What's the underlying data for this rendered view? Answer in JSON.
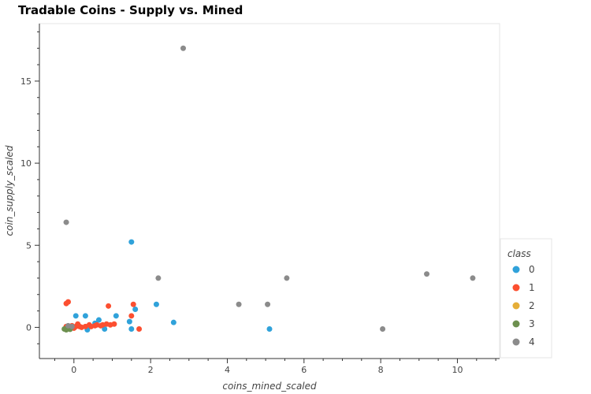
{
  "chart_data": {
    "type": "scatter",
    "title": "Tradable Coins - Supply vs. Mined",
    "xlabel": "coins_mined_scaled",
    "ylabel": "coin_supply_scaled",
    "xlim": [
      -0.9,
      11.1
    ],
    "ylim": [
      -1.9,
      18.5
    ],
    "xticks": [
      0,
      2,
      4,
      6,
      8,
      10
    ],
    "yticks": [
      0,
      5,
      10,
      15
    ],
    "grid": false,
    "legend": {
      "title": "class",
      "placement": "bottom-right"
    },
    "series": [
      {
        "name": "0",
        "color": "#30a2da",
        "points": [
          [
            0.05,
            0.7
          ],
          [
            0.3,
            0.7
          ],
          [
            0.35,
            -0.15
          ],
          [
            0.55,
            0.25
          ],
          [
            0.65,
            0.45
          ],
          [
            0.8,
            -0.1
          ],
          [
            1.1,
            0.7
          ],
          [
            1.45,
            0.35
          ],
          [
            1.5,
            5.2
          ],
          [
            1.5,
            -0.1
          ],
          [
            1.6,
            1.1
          ],
          [
            2.15,
            1.4
          ],
          [
            2.6,
            0.3
          ],
          [
            5.1,
            -0.1
          ]
        ]
      },
      {
        "name": "1",
        "color": "#fc4f30",
        "points": [
          [
            -0.2,
            1.45
          ],
          [
            -0.15,
            1.55
          ],
          [
            -0.1,
            0.0
          ],
          [
            0.0,
            -0.05
          ],
          [
            0.05,
            0.05
          ],
          [
            0.15,
            0.05
          ],
          [
            0.2,
            0.0
          ],
          [
            0.3,
            0.05
          ],
          [
            0.4,
            0.15
          ],
          [
            0.45,
            0.05
          ],
          [
            0.55,
            0.1
          ],
          [
            0.6,
            0.15
          ],
          [
            0.7,
            0.1
          ],
          [
            0.85,
            0.2
          ],
          [
            0.9,
            1.3
          ],
          [
            0.95,
            0.15
          ],
          [
            1.05,
            0.2
          ],
          [
            1.5,
            0.7
          ],
          [
            1.55,
            1.4
          ],
          [
            1.7,
            -0.1
          ],
          [
            -0.2,
            0.05
          ],
          [
            -0.05,
            0.1
          ],
          [
            0.1,
            0.2
          ],
          [
            0.75,
            0.15
          ]
        ]
      },
      {
        "name": "2",
        "color": "#e5ae38",
        "points": [
          [
            -0.2,
            -0.1
          ]
        ]
      },
      {
        "name": "3",
        "color": "#6d904f",
        "points": [
          [
            -0.25,
            -0.1
          ],
          [
            -0.2,
            -0.15
          ],
          [
            -0.15,
            -0.05
          ],
          [
            -0.1,
            -0.12
          ],
          [
            -0.22,
            -0.08
          ]
        ]
      },
      {
        "name": "4",
        "color": "#8b8b8b",
        "points": [
          [
            -0.2,
            6.4
          ],
          [
            -0.15,
            0.1
          ],
          [
            -0.05,
            0.05
          ],
          [
            2.2,
            3.0
          ],
          [
            2.85,
            17.0
          ],
          [
            4.3,
            1.4
          ],
          [
            5.05,
            1.4
          ],
          [
            5.55,
            3.0
          ],
          [
            8.05,
            -0.1
          ],
          [
            9.2,
            3.25
          ],
          [
            10.4,
            3.0
          ]
        ]
      }
    ]
  }
}
